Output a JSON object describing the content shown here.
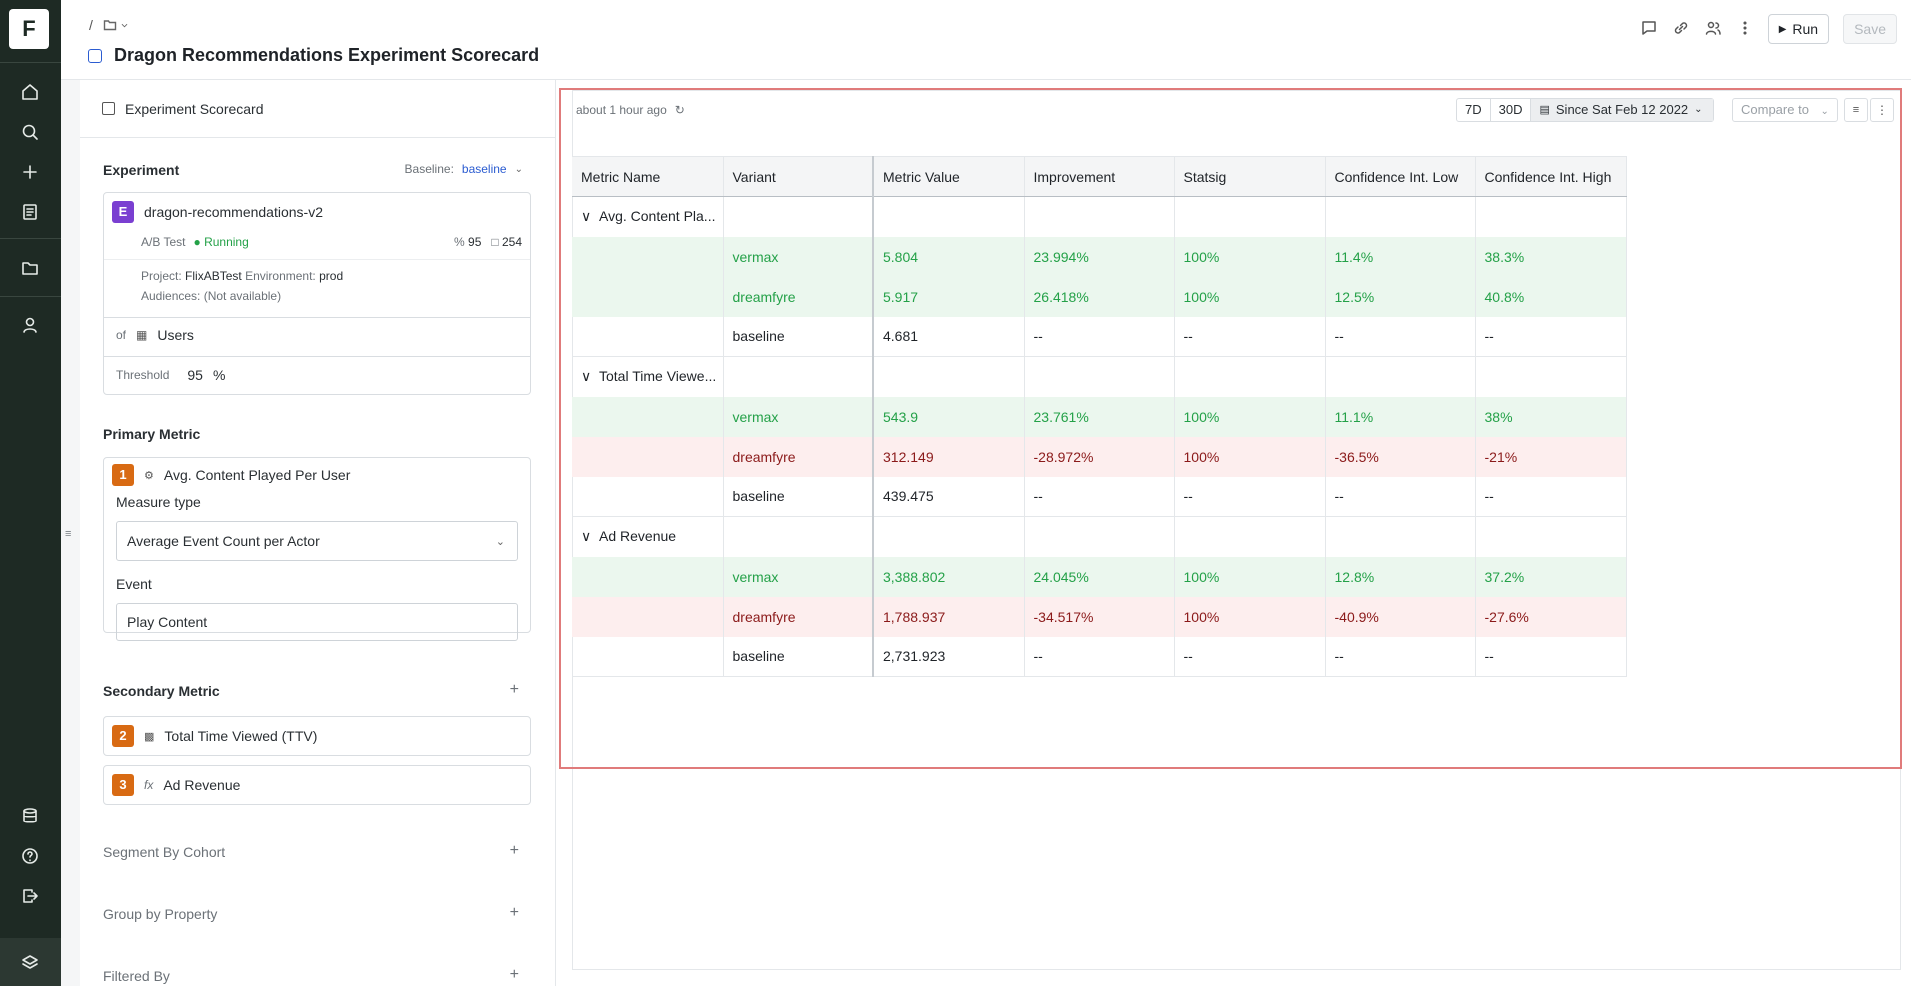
{
  "app": {
    "logo": "F"
  },
  "header": {
    "crumb_sep": "/",
    "title": "Dragon Recommendations Experiment Scorecard",
    "run_label": "Run",
    "save_label": "Save"
  },
  "left": {
    "panel_title": "Experiment Scorecard",
    "experiment": {
      "section": "Experiment",
      "baseline_label": "Baseline:",
      "baseline_value": "baseline",
      "badge": "E",
      "name": "dragon-recommendations-v2",
      "type": "A/B Test",
      "status": "Running",
      "confidence": "95",
      "days": "254",
      "project_label": "Project:",
      "project": "FlixABTest",
      "env_label": "Environment:",
      "env": "prod",
      "audiences_label": "Audiences:",
      "audiences": "(Not available)",
      "of_label": "of",
      "of_value": "Users",
      "threshold_label": "Threshold",
      "threshold_value": "95",
      "threshold_unit": "%"
    },
    "primary": {
      "section": "Primary Metric",
      "badge": "1",
      "name": "Avg. Content Played Per User",
      "measure_label": "Measure type",
      "measure_value": "Average Event Count per Actor",
      "event_label": "Event",
      "event_value": "Play Content"
    },
    "secondary": {
      "section": "Secondary Metric",
      "items": [
        {
          "badge": "2",
          "name": "Total Time Viewed (TTV)"
        },
        {
          "badge": "3",
          "fx": "fx",
          "name": "Ad Revenue"
        }
      ]
    },
    "segment": "Segment By Cohort",
    "group": "Group by Property",
    "filtered": "Filtered By"
  },
  "results": {
    "updated": "about 1 hour ago",
    "range_7d": "7D",
    "range_30d": "30D",
    "since": "Since Sat Feb 12 2022",
    "compare": "Compare to",
    "columns": [
      "Metric Name",
      "Variant",
      "Metric Value",
      "Improvement",
      "Statsig",
      "Confidence Int. Low",
      "Confidence Int. High"
    ],
    "groups": [
      {
        "metric": "Avg. Content Pla...",
        "rows": [
          {
            "variant": "vermax",
            "value": "5.804",
            "improvement": "23.994%",
            "statsig": "100%",
            "low": "11.4%",
            "high": "38.3%",
            "tone": "pos"
          },
          {
            "variant": "dreamfyre",
            "value": "5.917",
            "improvement": "26.418%",
            "statsig": "100%",
            "low": "12.5%",
            "high": "40.8%",
            "tone": "pos"
          },
          {
            "variant": "baseline",
            "value": "4.681",
            "improvement": "--",
            "statsig": "--",
            "low": "--",
            "high": "--",
            "tone": "base"
          }
        ]
      },
      {
        "metric": "Total Time Viewe...",
        "rows": [
          {
            "variant": "vermax",
            "value": "543.9",
            "improvement": "23.761%",
            "statsig": "100%",
            "low": "11.1%",
            "high": "38%",
            "tone": "pos"
          },
          {
            "variant": "dreamfyre",
            "value": "312.149",
            "improvement": "-28.972%",
            "statsig": "100%",
            "low": "-36.5%",
            "high": "-21%",
            "tone": "neg"
          },
          {
            "variant": "baseline",
            "value": "439.475",
            "improvement": "--",
            "statsig": "--",
            "low": "--",
            "high": "--",
            "tone": "base"
          }
        ]
      },
      {
        "metric": "Ad Revenue",
        "rows": [
          {
            "variant": "vermax",
            "value": "3,388.802",
            "improvement": "24.045%",
            "statsig": "100%",
            "low": "12.8%",
            "high": "37.2%",
            "tone": "pos"
          },
          {
            "variant": "dreamfyre",
            "value": "1,788.937",
            "improvement": "-34.517%",
            "statsig": "100%",
            "low": "-40.9%",
            "high": "-27.6%",
            "tone": "neg"
          },
          {
            "variant": "baseline",
            "value": "2,731.923",
            "improvement": "--",
            "statsig": "--",
            "low": "--",
            "high": "--",
            "tone": "base"
          }
        ]
      }
    ]
  },
  "colors": {
    "positive": "#24a148",
    "negative": "#8b1a1a",
    "nav_bg": "#1e2a24",
    "badge_orange": "#d86a13",
    "badge_purple": "#7a3fd1"
  }
}
